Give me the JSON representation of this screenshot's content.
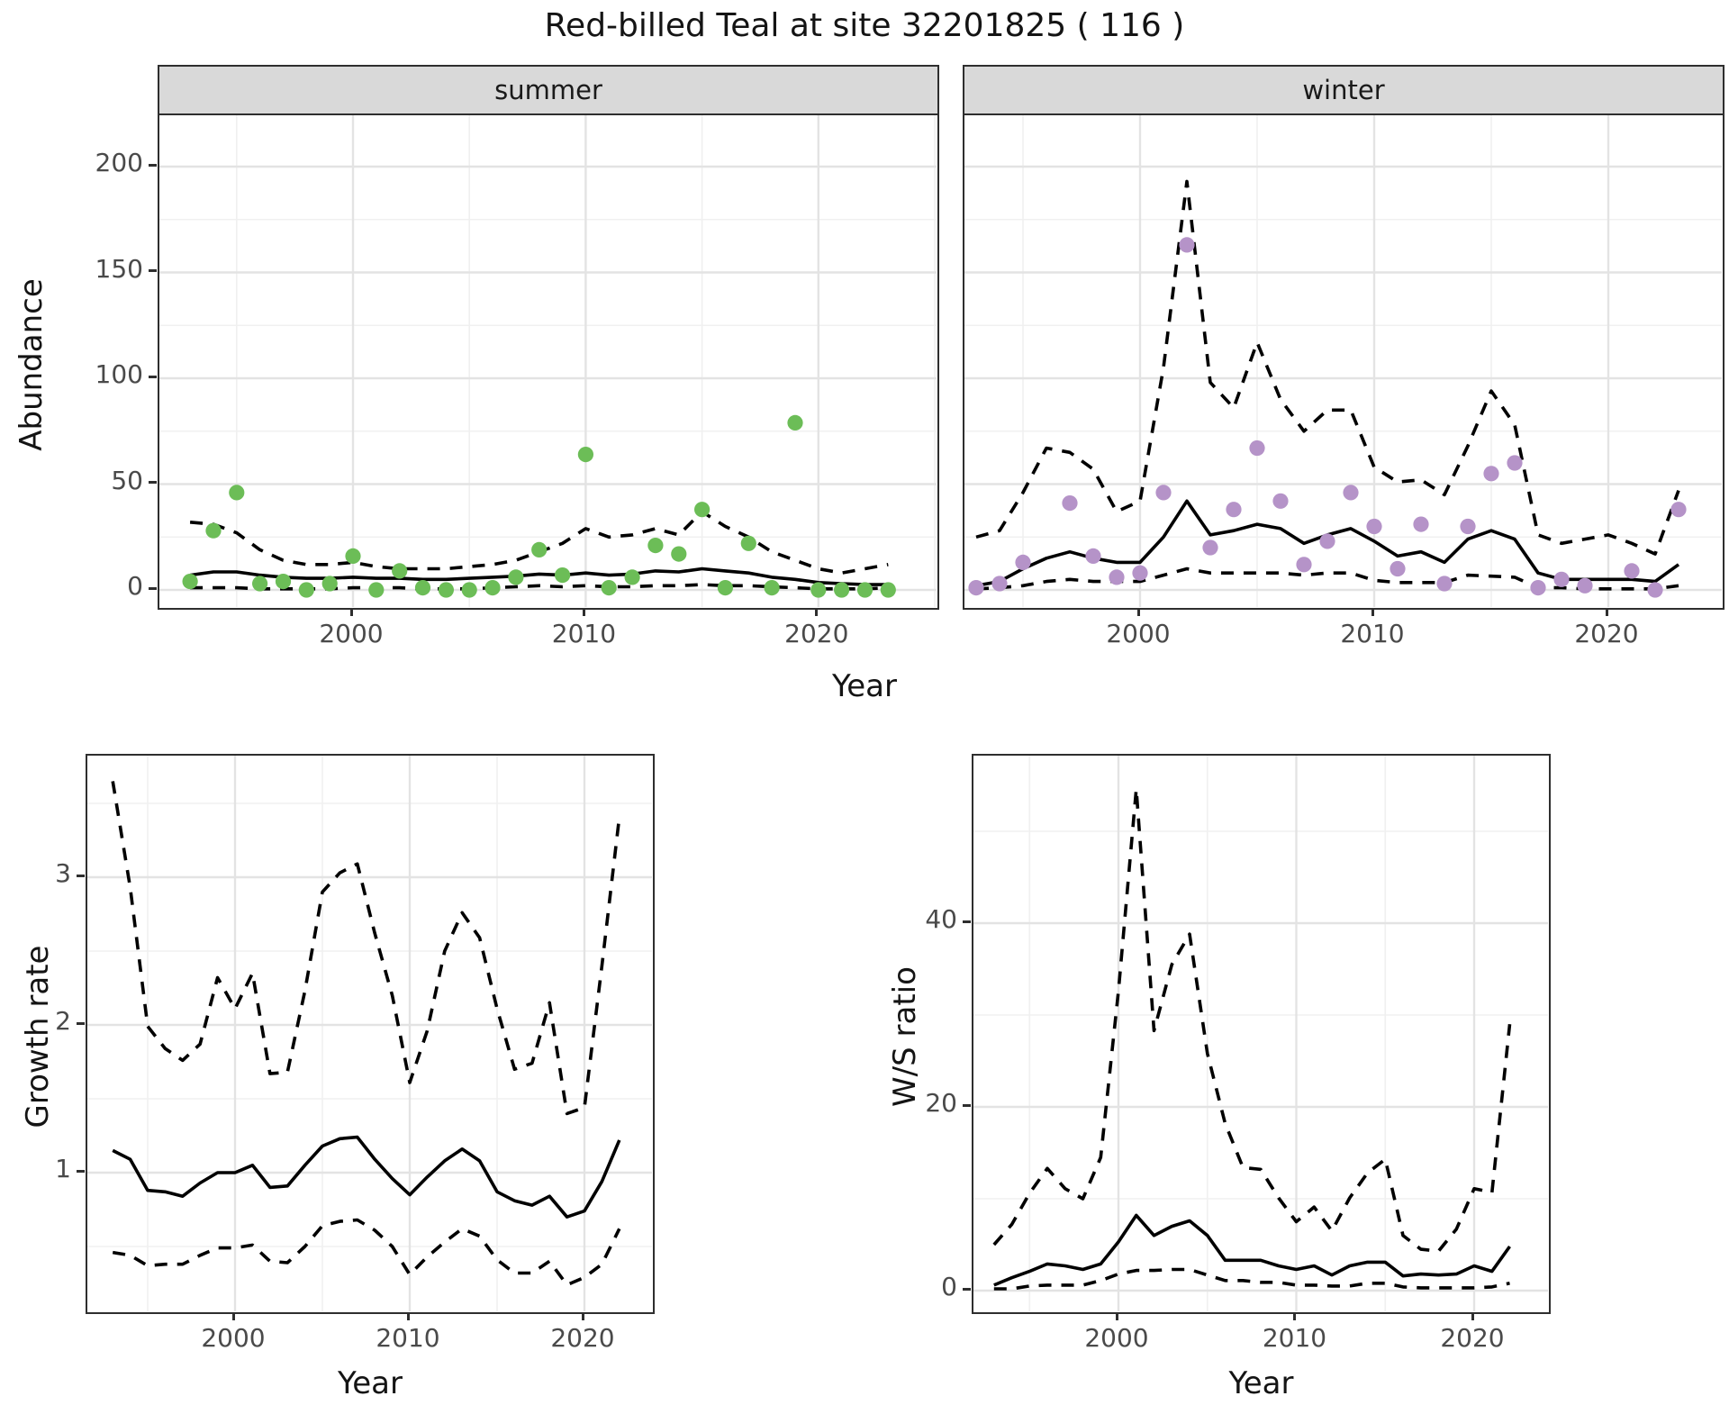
{
  "title": "Red-billed Teal at site 32201825 ( 116 )",
  "facets": {
    "summer_label": "summer",
    "winter_label": "winter"
  },
  "axis_titles": {
    "abundance": "Abundance",
    "year_top": "Year",
    "growth": "Growth rate",
    "ws": "W/S ratio",
    "year_growth": "Year",
    "year_ws": "Year"
  },
  "colors": {
    "summer_point": "#6cbd57",
    "winter_point": "#b593c8",
    "line": "#000000",
    "grid_major": "#e3e3e3",
    "grid_minor": "#f0f0f0",
    "strip_bg": "#d9d9d9",
    "border": "#2e2e2e"
  },
  "axes": {
    "abundance_ticks": [
      0,
      50,
      100,
      150,
      200
    ],
    "year_ticks": [
      2000,
      2010,
      2020
    ],
    "year_minor": [
      1995,
      2005,
      2015,
      2025
    ],
    "abundance_minor": [
      25,
      75,
      125,
      175
    ],
    "growth_ticks": [
      1,
      2,
      3
    ],
    "growth_minor": [
      0.5,
      1.5,
      2.5,
      3.5
    ],
    "ws_ticks": [
      0,
      20,
      40
    ],
    "ws_minor": [
      10,
      30,
      50
    ]
  },
  "chart_data": [
    {
      "id": "abundance_summer",
      "type": "scatter",
      "facet": "summer",
      "ylabel": "Abundance",
      "xlabel": "Year",
      "ylim": [
        0,
        205
      ],
      "legend": "none",
      "years": [
        1993,
        1994,
        1995,
        1996,
        1997,
        1998,
        1999,
        2000,
        2001,
        2002,
        2003,
        2004,
        2005,
        2006,
        2007,
        2008,
        2009,
        2010,
        2011,
        2012,
        2013,
        2014,
        2015,
        2016,
        2017,
        2018,
        2019,
        2020,
        2021,
        2022,
        2023
      ],
      "observed": [
        4,
        28,
        46,
        3,
        4,
        0,
        3,
        16,
        0,
        9,
        1,
        0,
        0,
        1,
        6,
        19,
        7,
        64,
        1,
        6,
        21,
        17,
        38,
        1,
        22,
        1,
        79,
        0,
        0,
        0,
        0
      ],
      "mean": [
        7,
        8.5,
        8.5,
        7,
        6,
        5.5,
        5.5,
        6,
        5.5,
        5.5,
        5,
        5,
        5.5,
        6,
        6.5,
        7.5,
        7,
        8,
        7,
        7.5,
        9,
        8.5,
        10,
        9,
        8,
        6,
        5,
        3.5,
        3,
        2.5,
        2.5
      ],
      "ci_upper": [
        32,
        31,
        27,
        19,
        14,
        12,
        12,
        13,
        11,
        10,
        10,
        10,
        11,
        12,
        14,
        18,
        22,
        29,
        25,
        26,
        29,
        26,
        37,
        30,
        25,
        18,
        14,
        10,
        8,
        10,
        12
      ],
      "ci_lower": [
        1,
        1,
        1,
        0.5,
        0.5,
        0.5,
        0.5,
        1,
        1,
        1,
        0.5,
        0.5,
        0.5,
        1,
        1.5,
        2,
        1.5,
        2,
        1.5,
        1.5,
        2,
        2,
        2.5,
        2,
        2,
        1.5,
        1,
        0.5,
        0.5,
        0.5,
        1
      ]
    },
    {
      "id": "abundance_winter",
      "type": "scatter",
      "facet": "winter",
      "ylabel": "Abundance",
      "xlabel": "Year",
      "ylim": [
        0,
        205
      ],
      "legend": "none",
      "years": [
        1993,
        1994,
        1995,
        1996,
        1997,
        1998,
        1999,
        2000,
        2001,
        2002,
        2003,
        2004,
        2005,
        2006,
        2007,
        2008,
        2009,
        2010,
        2011,
        2012,
        2013,
        2014,
        2015,
        2016,
        2017,
        2018,
        2019,
        2020,
        2021,
        2022,
        2023
      ],
      "observed": [
        1,
        3,
        13,
        null,
        41,
        16,
        6,
        8,
        46,
        163,
        20,
        38,
        67,
        42,
        12,
        23,
        46,
        30,
        10,
        31,
        3,
        30,
        55,
        60,
        1,
        5,
        2,
        null,
        9,
        0,
        38
      ],
      "mean": [
        2,
        4,
        10,
        15,
        18,
        15,
        13,
        13,
        25,
        42,
        26,
        28,
        31,
        29,
        22,
        26,
        29,
        23,
        16,
        18,
        13,
        24,
        28,
        24,
        8,
        5,
        5,
        5,
        5,
        4,
        12
      ],
      "ci_upper": [
        25,
        28,
        46,
        67,
        65,
        57,
        37,
        42,
        105,
        193,
        98,
        86,
        117,
        90,
        75,
        85,
        85,
        58,
        51,
        52,
        45,
        68,
        94,
        78,
        26,
        22,
        24,
        26,
        22,
        17,
        47
      ],
      "ci_lower": [
        0.5,
        1,
        2,
        4,
        5,
        4,
        4,
        4,
        7,
        10,
        8,
        8,
        8,
        8,
        7,
        8,
        8,
        4.5,
        3.5,
        3.5,
        3.5,
        7,
        6.5,
        6,
        1,
        1,
        0.5,
        0.5,
        0.5,
        0.5,
        2
      ]
    },
    {
      "id": "growth_rate",
      "type": "line",
      "ylabel": "Growth rate",
      "xlabel": "Year",
      "ylim": [
        0.03,
        3.82
      ],
      "legend": "none",
      "years": [
        1993,
        1994,
        1995,
        1996,
        1997,
        1998,
        1999,
        2000,
        2001,
        2002,
        2003,
        2004,
        2005,
        2006,
        2007,
        2008,
        2009,
        2010,
        2011,
        2012,
        2013,
        2014,
        2015,
        2016,
        2017,
        2018,
        2019,
        2020,
        2021,
        2022
      ],
      "mean": [
        1.15,
        1.09,
        0.88,
        0.87,
        0.84,
        0.93,
        1.0,
        1.0,
        1.05,
        0.9,
        0.91,
        1.05,
        1.18,
        1.23,
        1.24,
        1.09,
        0.96,
        0.85,
        0.97,
        1.08,
        1.16,
        1.08,
        0.87,
        0.81,
        0.78,
        0.84,
        0.7,
        0.74,
        0.94,
        1.22
      ],
      "ci_upper": [
        3.65,
        2.93,
        1.99,
        1.84,
        1.76,
        1.87,
        2.32,
        2.11,
        2.35,
        1.67,
        1.68,
        2.23,
        2.9,
        3.03,
        3.09,
        2.62,
        2.2,
        1.61,
        1.96,
        2.5,
        2.76,
        2.59,
        2.11,
        1.7,
        1.74,
        2.15,
        1.4,
        1.44,
        2.4,
        3.41
      ],
      "ci_lower": [
        0.46,
        0.44,
        0.37,
        0.38,
        0.38,
        0.44,
        0.49,
        0.49,
        0.51,
        0.4,
        0.39,
        0.5,
        0.64,
        0.67,
        0.68,
        0.61,
        0.5,
        0.31,
        0.43,
        0.53,
        0.62,
        0.57,
        0.41,
        0.32,
        0.32,
        0.4,
        0.24,
        0.29,
        0.38,
        0.62
      ]
    },
    {
      "id": "ws_ratio",
      "type": "line",
      "ylabel": "W/S ratio",
      "xlabel": "Year",
      "ylim": [
        -2.7,
        58.2
      ],
      "legend": "none",
      "years": [
        1993,
        1994,
        1995,
        1996,
        1997,
        1998,
        1999,
        2000,
        2001,
        2002,
        2003,
        2004,
        2005,
        2006,
        2007,
        2008,
        2009,
        2010,
        2011,
        2012,
        2013,
        2014,
        2015,
        2016,
        2017,
        2018,
        2019,
        2020,
        2021,
        2022
      ],
      "mean": [
        0.6,
        1.4,
        2.1,
        2.9,
        2.7,
        2.3,
        2.9,
        5.3,
        8.2,
        6,
        7,
        7.6,
        6,
        3.3,
        3.3,
        3.3,
        2.7,
        2.3,
        2.7,
        1.7,
        2.7,
        3.1,
        3.1,
        1.6,
        1.8,
        1.7,
        1.8,
        2.7,
        2.1,
        4.8
      ],
      "ci_upper": [
        5,
        7.2,
        10.6,
        13.3,
        11.1,
        10,
        14.5,
        32.6,
        54.6,
        28.3,
        35.5,
        38.8,
        25.8,
        18.2,
        13.4,
        13.2,
        10.1,
        7.5,
        9.1,
        6.5,
        10.1,
        12.8,
        14.3,
        6,
        4.5,
        4.3,
        6.7,
        11.1,
        10.7,
        29
      ],
      "ci_lower": [
        0.2,
        0.2,
        0.5,
        0.6,
        0.6,
        0.6,
        1.1,
        1.8,
        2.2,
        2.2,
        2.3,
        2.3,
        1.7,
        1.1,
        1.1,
        0.9,
        0.9,
        0.6,
        0.6,
        0.5,
        0.5,
        0.8,
        0.8,
        0.4,
        0.3,
        0.3,
        0.3,
        0.3,
        0.4,
        0.8
      ]
    }
  ]
}
